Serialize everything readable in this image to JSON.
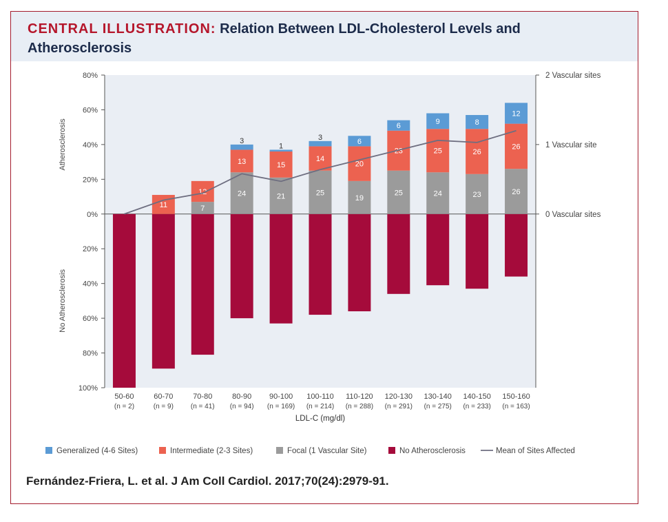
{
  "header": {
    "title_prefix": "CENTRAL ILLUSTRATION:",
    "title_main": "Relation Between LDL-Cholesterol Levels and",
    "title_line2": "Atherosclerosis"
  },
  "citation": "Fernández-Friera, L. et al. J Am Coll Cardiol. 2017;70(24):2979-91.",
  "colors": {
    "generalized": "#5b9bd5",
    "intermediate": "#ec6250",
    "focal": "#9b9b9b",
    "none": "#a50b3b",
    "mean_line": "#6e6e80",
    "plot_bg": "#eaeef4"
  },
  "chart_data": {
    "type": "bar",
    "xlabel": "LDL-C (mg/dl)",
    "ylabel_top": "Atherosclerosis",
    "ylabel_bottom": "No Atherosclerosis",
    "ylim": [
      -100,
      80
    ],
    "y_ticks": [
      80,
      60,
      40,
      20,
      0,
      -20,
      -40,
      -60,
      -80,
      -100
    ],
    "y_tick_labels": [
      "80%",
      "60%",
      "40%",
      "20%",
      "0%",
      "20%",
      "40%",
      "60%",
      "80%",
      "100%"
    ],
    "right_axis": {
      "labels": [
        "2 Vascular sites",
        "1 Vascular site",
        "0 Vascular sites"
      ],
      "values": [
        2,
        1,
        0
      ]
    },
    "categories": [
      "50-60",
      "60-70",
      "70-80",
      "80-90",
      "90-100",
      "100-110",
      "110-120",
      "120-130",
      "130-140",
      "140-150",
      "150-160"
    ],
    "n_labels": [
      "(n = 2)",
      "(n = 9)",
      "(n = 41)",
      "(n = 94)",
      "(n = 169)",
      "(n = 214)",
      "(n = 288)",
      "(n = 291)",
      "(n = 275)",
      "(n = 233)",
      "(n = 163)"
    ],
    "series": [
      {
        "name": "Focal (1 Vascular Site)",
        "key": "focal",
        "values": [
          0,
          0,
          7,
          24,
          21,
          25,
          19,
          25,
          24,
          23,
          26
        ],
        "labels": [
          "",
          "",
          "7",
          "24",
          "21",
          "25",
          "19",
          "25",
          "24",
          "23",
          "26"
        ]
      },
      {
        "name": "Intermediate (2-3 Sites)",
        "key": "intermediate",
        "values": [
          0,
          11,
          12,
          13,
          15,
          14,
          20,
          23,
          25,
          26,
          26
        ],
        "labels": [
          "",
          "11",
          "12",
          "13",
          "15",
          "14",
          "20",
          "23",
          "25",
          "26",
          "26"
        ]
      },
      {
        "name": "Generalized (4-6 Sites)",
        "key": "generalized",
        "values": [
          0,
          0,
          0,
          3,
          1,
          3,
          6,
          6,
          9,
          8,
          12
        ],
        "labels": [
          "",
          "",
          "",
          "3",
          "1",
          "3",
          "6",
          "6",
          "9",
          "8",
          "12"
        ]
      },
      {
        "name": "No Atherosclerosis",
        "key": "none",
        "values": [
          100,
          89,
          81,
          60,
          63,
          58,
          56,
          46,
          41,
          43,
          36
        ],
        "labels": [
          "",
          "",
          "",
          "",
          "",
          "",
          "",
          "",
          "",
          "",
          ""
        ]
      }
    ],
    "mean_sites": [
      0,
      0.2,
      0.3,
      0.58,
      0.47,
      0.64,
      0.78,
      0.92,
      1.06,
      1.03,
      1.2
    ],
    "legend": [
      {
        "label": "Generalized (4-6 Sites)",
        "key": "generalized",
        "kind": "box"
      },
      {
        "label": "Intermediate (2-3 Sites)",
        "key": "intermediate",
        "kind": "box"
      },
      {
        "label": "Focal (1 Vascular Site)",
        "key": "focal",
        "kind": "box"
      },
      {
        "label": "No Atherosclerosis",
        "key": "none",
        "kind": "box"
      },
      {
        "label": "Mean of Sites Affected",
        "key": "mean_line",
        "kind": "line"
      }
    ]
  }
}
